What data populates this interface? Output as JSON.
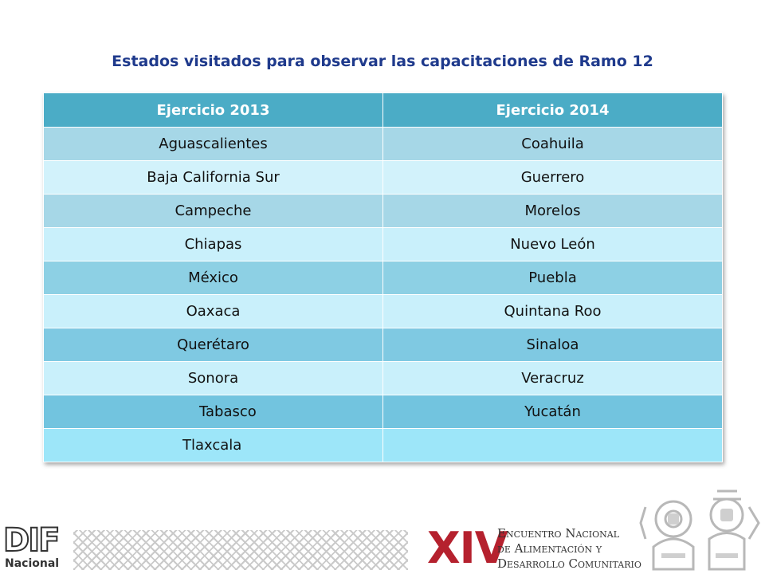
{
  "title": "Estados visitados para observar las capacitaciones de Ramo 12",
  "table": {
    "headers": [
      "Ejercicio 2013",
      "Ejercicio 2014"
    ],
    "rows": [
      [
        "Aguascalientes",
        "Coahuila"
      ],
      [
        "Baja California Sur",
        "Guerrero"
      ],
      [
        "Campeche",
        "Morelos"
      ],
      [
        "Chiapas",
        "Nuevo León"
      ],
      [
        "México",
        "Puebla"
      ],
      [
        "Oaxaca",
        "Quintana Roo"
      ],
      [
        "Querétaro",
        "Sinaloa"
      ],
      [
        "Sonora",
        "Veracruz"
      ],
      [
        "Tabasco",
        "Yucatán"
      ],
      [
        "Tlaxcala",
        ""
      ]
    ]
  },
  "footer": {
    "dif_logo_text": "DIF",
    "dif_subtitle": "Nacional",
    "event_number": "XIV",
    "event_line1": "Encuentro Nacional",
    "event_line2": "de Alimentación y",
    "event_line3": "Desarrollo Comunitario"
  },
  "colors": {
    "title": "#1f3a8c",
    "header_bg": "#4bacc6",
    "row_dark": "#a6d7e7",
    "row_light": "#d2f2fb",
    "event_red": "#b5212e"
  }
}
